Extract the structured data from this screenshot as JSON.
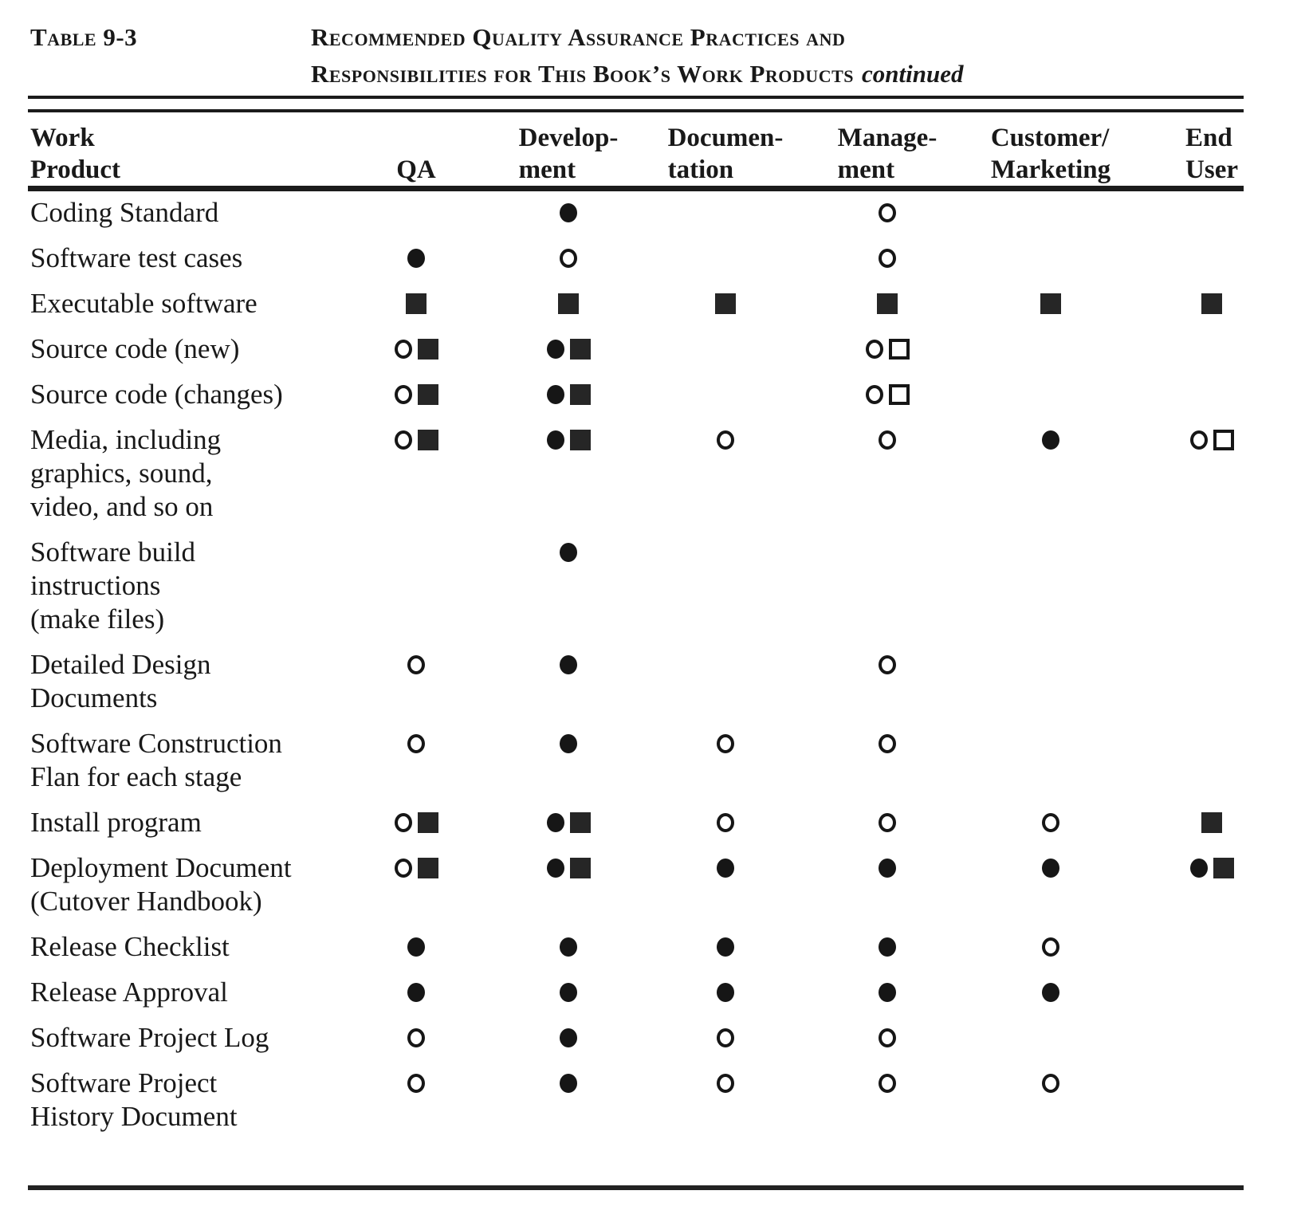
{
  "colors": {
    "ink": "#1b1b1b",
    "paper": "#ffffff"
  },
  "caption": {
    "table_label": "Table 9-3",
    "title_line1": "Recommended Quality Assurance Practices and",
    "title_line2": "Responsibilities for This Book’s Work Products",
    "title_continued": "continued"
  },
  "header": {
    "work_product_lines": [
      "Work",
      "Product"
    ]
  },
  "columns": [
    {
      "id": "qa",
      "lines": [
        "QA"
      ]
    },
    {
      "id": "development",
      "lines": [
        "Develop-",
        "ment"
      ]
    },
    {
      "id": "documentation",
      "lines": [
        "Documen-",
        "tation"
      ]
    },
    {
      "id": "management",
      "lines": [
        "Manage-",
        "ment"
      ]
    },
    {
      "id": "customer-marketing",
      "lines": [
        "Customer/",
        "Marketing"
      ]
    },
    {
      "id": "end-user",
      "lines": [
        "End",
        "User"
      ]
    }
  ],
  "symbol_names": [
    "filled-circle",
    "open-circle",
    "filled-square",
    "open-square"
  ],
  "rows": [
    {
      "label_lines": [
        "Coding Standard"
      ],
      "cells": [
        [],
        [
          "filled-circle"
        ],
        [],
        [
          "open-circle"
        ],
        [],
        []
      ]
    },
    {
      "label_lines": [
        "Software test cases"
      ],
      "cells": [
        [
          "filled-circle"
        ],
        [
          "open-circle"
        ],
        [],
        [
          "open-circle"
        ],
        [],
        []
      ]
    },
    {
      "label_lines": [
        "Executable software"
      ],
      "cells": [
        [
          "filled-square"
        ],
        [
          "filled-square"
        ],
        [
          "filled-square"
        ],
        [
          "filled-square"
        ],
        [
          "filled-square"
        ],
        [
          "filled-square"
        ]
      ]
    },
    {
      "label_lines": [
        "Source code (new)"
      ],
      "cells": [
        [
          "open-circle",
          "filled-square"
        ],
        [
          "filled-circle",
          "filled-square"
        ],
        [],
        [
          "open-circle",
          "open-square"
        ],
        [],
        []
      ]
    },
    {
      "label_lines": [
        "Source code (changes)"
      ],
      "cells": [
        [
          "open-circle",
          "filled-square"
        ],
        [
          "filled-circle",
          "filled-square"
        ],
        [],
        [
          "open-circle",
          "open-square"
        ],
        [],
        []
      ]
    },
    {
      "label_lines": [
        "Media, including",
        "graphics, sound,",
        "video, and so on"
      ],
      "cells": [
        [
          "open-circle",
          "filled-square"
        ],
        [
          "filled-circle",
          "filled-square"
        ],
        [
          "open-circle"
        ],
        [
          "open-circle"
        ],
        [
          "filled-circle"
        ],
        [
          "open-circle",
          "open-square"
        ]
      ]
    },
    {
      "label_lines": [
        "Software build",
        "instructions",
        "(make files)"
      ],
      "cells": [
        [],
        [
          "filled-circle"
        ],
        [],
        [],
        [],
        []
      ]
    },
    {
      "label_lines": [
        "Detailed Design",
        "Documents"
      ],
      "cells": [
        [
          "open-circle"
        ],
        [
          "filled-circle"
        ],
        [],
        [
          "open-circle"
        ],
        [],
        []
      ]
    },
    {
      "label_lines": [
        "Software Construction",
        "Flan for each stage"
      ],
      "cells": [
        [
          "open-circle"
        ],
        [
          "filled-circle"
        ],
        [
          "open-circle"
        ],
        [
          "open-circle"
        ],
        [],
        []
      ]
    },
    {
      "label_lines": [
        "Install program"
      ],
      "cells": [
        [
          "open-circle",
          "filled-square"
        ],
        [
          "filled-circle",
          "filled-square"
        ],
        [
          "open-circle"
        ],
        [
          "open-circle"
        ],
        [
          "open-circle"
        ],
        [
          "filled-square"
        ]
      ]
    },
    {
      "label_lines": [
        "Deployment Document",
        "(Cutover Handbook)"
      ],
      "cells": [
        [
          "open-circle",
          "filled-square"
        ],
        [
          "filled-circle",
          "filled-square"
        ],
        [
          "filled-circle"
        ],
        [
          "filled-circle"
        ],
        [
          "filled-circle"
        ],
        [
          "filled-circle",
          "filled-square"
        ]
      ]
    },
    {
      "label_lines": [
        "Release Checklist"
      ],
      "cells": [
        [
          "filled-circle"
        ],
        [
          "filled-circle"
        ],
        [
          "filled-circle"
        ],
        [
          "filled-circle"
        ],
        [
          "open-circle"
        ],
        []
      ]
    },
    {
      "label_lines": [
        "Release Approval"
      ],
      "cells": [
        [
          "filled-circle"
        ],
        [
          "filled-circle"
        ],
        [
          "filled-circle"
        ],
        [
          "filled-circle"
        ],
        [
          "filled-circle"
        ],
        []
      ]
    },
    {
      "label_lines": [
        "Software Project Log"
      ],
      "cells": [
        [
          "open-circle"
        ],
        [
          "filled-circle"
        ],
        [
          "open-circle"
        ],
        [
          "open-circle"
        ],
        [],
        []
      ]
    },
    {
      "label_lines": [
        "Software Project",
        "History Document"
      ],
      "cells": [
        [
          "open-circle"
        ],
        [
          "filled-circle"
        ],
        [
          "open-circle"
        ],
        [
          "open-circle"
        ],
        [
          "open-circle"
        ],
        []
      ]
    }
  ]
}
